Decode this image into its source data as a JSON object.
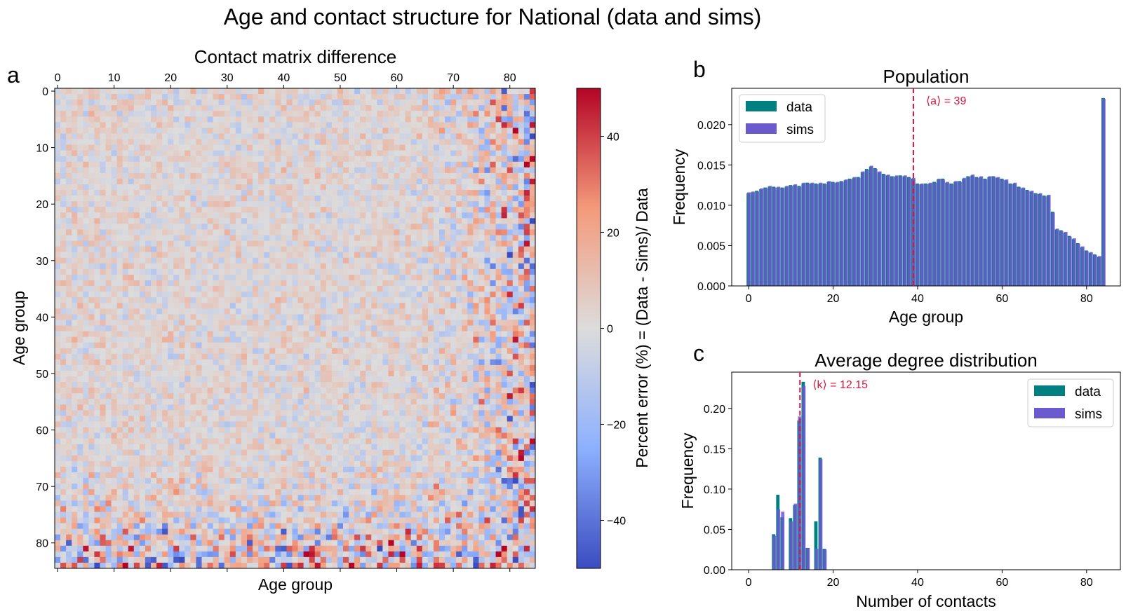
{
  "figure": {
    "title": "Age and contact structure for National (data and sims)",
    "panel_labels": [
      "a",
      "b",
      "c"
    ]
  },
  "colors": {
    "data": "#008080",
    "sims": "#6a5acd",
    "mean_line": "#dc143c",
    "colormap": "coolwarm"
  },
  "chart_data": [
    {
      "type": "heatmap",
      "panel": "a",
      "title": "Contact matrix difference",
      "xlabel": "Age group",
      "ylabel": "Age group",
      "x_ticks": [
        0,
        10,
        20,
        30,
        40,
        50,
        60,
        70,
        80
      ],
      "y_ticks": [
        0,
        10,
        20,
        30,
        40,
        50,
        60,
        70,
        80
      ],
      "n_age_groups": 85,
      "colorbar": {
        "label": "Percent error (%) = (Data - Sims)/ Data",
        "ticks": [
          -40,
          -20,
          0,
          20,
          40
        ],
        "tick_labels": [
          "−40",
          "−20",
          "0",
          "20",
          "40"
        ],
        "range": [
          -50,
          50
        ]
      },
      "values_summary": "85x85 percent-error matrix, mostly within ±10%, larger errors (up to ±50%) at ages 75-84"
    },
    {
      "type": "bar",
      "panel": "b",
      "title": "Population",
      "xlabel": "Age group",
      "ylabel": "Frequency",
      "xlim": [
        -4,
        88
      ],
      "ylim": [
        0,
        0.0245
      ],
      "x_ticks": [
        0,
        20,
        40,
        60,
        80
      ],
      "y_ticks": [
        0.0,
        0.005,
        0.01,
        0.015,
        0.02
      ],
      "y_tick_labels": [
        "0.000",
        "0.005",
        "0.010",
        "0.015",
        "0.020"
      ],
      "legend": {
        "position": "upper-left",
        "entries": [
          "data",
          "sims"
        ]
      },
      "annotation": {
        "text": "⟨a⟩ = 39",
        "x": 39
      },
      "series": [
        {
          "name": "data",
          "x_start": 0,
          "values": [
            0.0115,
            0.0116,
            0.0118,
            0.012,
            0.0122,
            0.0123,
            0.0123,
            0.0122,
            0.0122,
            0.0123,
            0.0125,
            0.0125,
            0.0124,
            0.0127,
            0.0128,
            0.0127,
            0.0127,
            0.0127,
            0.0127,
            0.0129,
            0.0129,
            0.0128,
            0.013,
            0.0131,
            0.0133,
            0.0134,
            0.0135,
            0.0141,
            0.0145,
            0.0148,
            0.0146,
            0.0141,
            0.0139,
            0.0137,
            0.0136,
            0.0136,
            0.0137,
            0.0136,
            0.0135,
            0.0133,
            0.0127,
            0.0126,
            0.0127,
            0.0127,
            0.0129,
            0.0132,
            0.0133,
            0.0128,
            0.0127,
            0.0129,
            0.013,
            0.0133,
            0.0136,
            0.0137,
            0.0135,
            0.0135,
            0.0133,
            0.0135,
            0.0136,
            0.0134,
            0.0133,
            0.0131,
            0.0127,
            0.0127,
            0.0123,
            0.0121,
            0.0119,
            0.0117,
            0.0115,
            0.0114,
            0.0112,
            0.0112,
            0.0092,
            0.007,
            0.0069,
            0.0066,
            0.0062,
            0.0058,
            0.0053,
            0.0048,
            0.0044,
            0.0041,
            0.0039,
            0.0036,
            0.0233
          ]
        },
        {
          "name": "sims",
          "x_start": 0,
          "values": [
            0.0116,
            0.0117,
            0.0117,
            0.0121,
            0.0121,
            0.0124,
            0.0122,
            0.0123,
            0.0121,
            0.0124,
            0.0124,
            0.0126,
            0.0123,
            0.0128,
            0.0127,
            0.0128,
            0.0126,
            0.0128,
            0.0126,
            0.013,
            0.0128,
            0.0129,
            0.0129,
            0.0132,
            0.0132,
            0.0135,
            0.0134,
            0.0142,
            0.0144,
            0.0149,
            0.0145,
            0.0142,
            0.0138,
            0.0138,
            0.0135,
            0.0137,
            0.0136,
            0.0137,
            0.0134,
            0.0134,
            0.0126,
            0.0127,
            0.0126,
            0.0128,
            0.0128,
            0.0133,
            0.0132,
            0.0129,
            0.0126,
            0.013,
            0.0129,
            0.0134,
            0.0135,
            0.0138,
            0.0134,
            0.0136,
            0.0132,
            0.0136,
            0.0135,
            0.0135,
            0.0132,
            0.0132,
            0.0126,
            0.0128,
            0.0122,
            0.0122,
            0.0118,
            0.0118,
            0.0114,
            0.0115,
            0.0111,
            0.0113,
            0.0091,
            0.0071,
            0.0068,
            0.0067,
            0.0061,
            0.0059,
            0.0052,
            0.0049,
            0.0043,
            0.0042,
            0.0038,
            0.0037,
            0.0232
          ]
        }
      ]
    },
    {
      "type": "bar",
      "panel": "c",
      "title": "Average degree distribution",
      "xlabel": "Number of contacts",
      "ylabel": "Frequency",
      "xlim": [
        -4,
        88
      ],
      "ylim": [
        0,
        0.245
      ],
      "x_ticks": [
        0,
        20,
        40,
        60,
        80
      ],
      "y_ticks": [
        0.0,
        0.05,
        0.1,
        0.15,
        0.2
      ],
      "y_tick_labels": [
        "0.00",
        "0.05",
        "0.10",
        "0.15",
        "0.20"
      ],
      "legend": {
        "position": "upper-right",
        "entries": [
          "data",
          "sims"
        ]
      },
      "annotation": {
        "text": "⟨k⟩ = 12.15",
        "x": 12.15
      },
      "series": [
        {
          "name": "data",
          "x": [
            6,
            7,
            8,
            9,
            10,
            11,
            12,
            13,
            14,
            15,
            16,
            17,
            18
          ],
          "values": [
            0.044,
            0.093,
            0.065,
            0.0,
            0.064,
            0.08,
            0.185,
            0.233,
            0.027,
            0.0,
            0.06,
            0.139,
            0.026
          ]
        },
        {
          "name": "sims",
          "x": [
            6,
            7,
            8,
            9,
            10,
            11,
            12,
            13,
            14,
            15,
            16,
            17,
            18
          ],
          "values": [
            0.042,
            0.075,
            0.072,
            0.0,
            0.06,
            0.082,
            0.19,
            0.228,
            0.027,
            0.0,
            0.026,
            0.137,
            0.025
          ]
        }
      ]
    }
  ]
}
